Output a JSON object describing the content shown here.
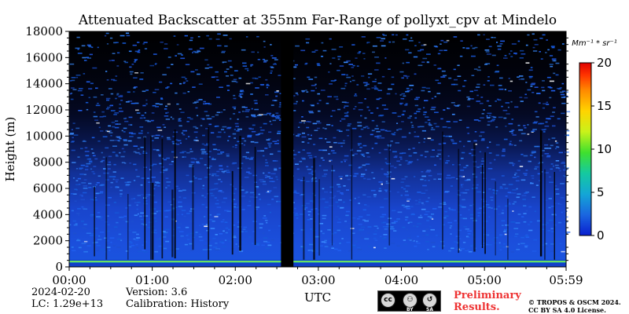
{
  "chart_data": {
    "type": "heatmap",
    "title": "Attenuated Backscatter at 355nm Far-Range of pollyxt_cpv at Mindelo",
    "xlabel": "UTC",
    "ylabel": "Height (m)",
    "x_ticks": [
      "00:00",
      "01:00",
      "02:00",
      "03:00",
      "04:00",
      "05:00",
      "05:59"
    ],
    "x_tick_values_hours": [
      0,
      1,
      2,
      3,
      4,
      5,
      5.983
    ],
    "xlim_hours": [
      0,
      5.983
    ],
    "y_ticks": [
      0,
      2000,
      4000,
      6000,
      8000,
      10000,
      12000,
      14000,
      16000,
      18000
    ],
    "ylim": [
      0,
      18000
    ],
    "colorbar": {
      "unit_label": "Mm⁻¹ * sr⁻¹",
      "range": [
        0,
        20
      ],
      "ticks": [
        0,
        5,
        10,
        15,
        20
      ],
      "colormap": [
        "#0a1fcf",
        "#1a66e0",
        "#14a6d6",
        "#15c9a0",
        "#3fe02e",
        "#c9f21a",
        "#ffd400",
        "#ff8a00",
        "#ff3300",
        "#e00000"
      ]
    },
    "no_data_gap_hours": [
      2.55,
      2.7
    ],
    "description_layers": [
      {
        "height_range_m": [
          0,
          500
        ],
        "typical_value": 12
      },
      {
        "height_range_m": [
          500,
          2000
        ],
        "typical_value": 3
      },
      {
        "height_range_m": [
          2000,
          8000
        ],
        "typical_value": 2
      },
      {
        "height_range_m": [
          8000,
          18000
        ],
        "typical_value": 1
      }
    ],
    "grid": false
  },
  "footer": {
    "date": "2024-02-20",
    "lc": "LC: 1.29e+13",
    "version": "Version: 3.6",
    "calibration": "Calibration: History",
    "preliminary_line1": "Preliminary",
    "preliminary_line2": "Results.",
    "copyright_line1": "© TROPOS & OSCM 2024.",
    "copyright_line2": "CC BY SA 4.0 License.",
    "cc_badge": {
      "cc": "cc",
      "by": "BY",
      "sa": "SA"
    }
  }
}
